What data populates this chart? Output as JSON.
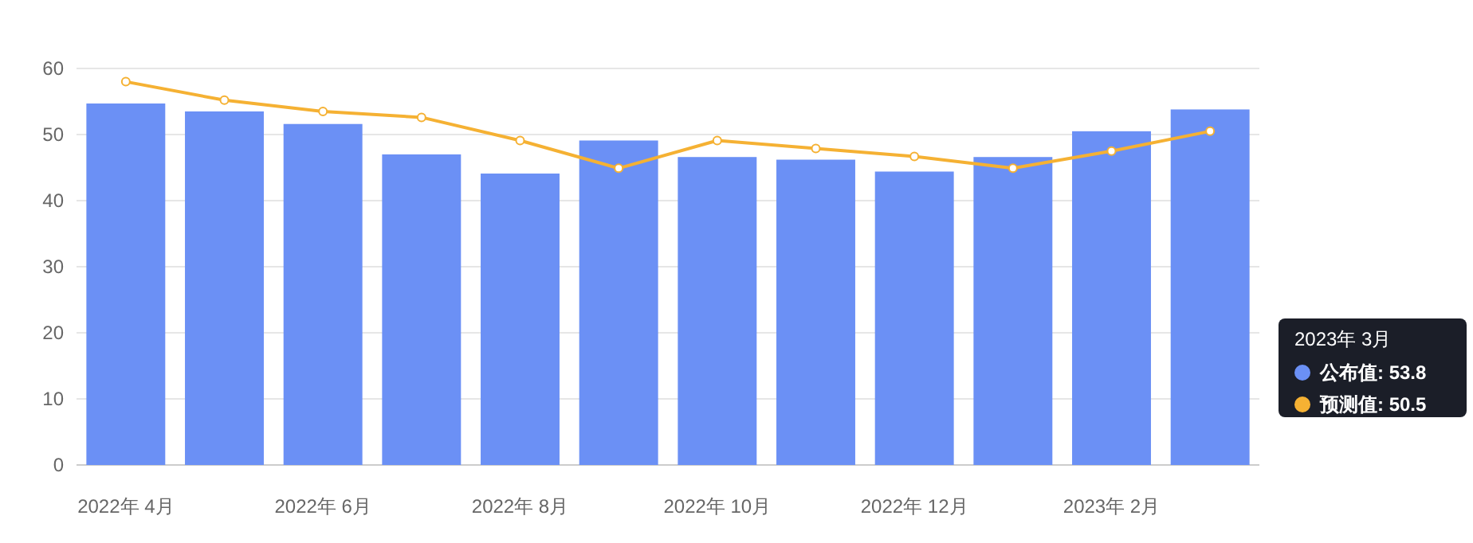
{
  "chart_data": {
    "type": "bar",
    "categories": [
      "2022年 4月",
      null,
      "2022年 6月",
      null,
      "2022年 8月",
      null,
      "2022年 10月",
      null,
      "2022年 12月",
      null,
      "2023年 2月",
      null
    ],
    "series": [
      {
        "name": "公布值",
        "color": "#6b90f5",
        "values": [
          54.7,
          53.5,
          51.6,
          47.0,
          44.1,
          49.1,
          46.6,
          46.2,
          44.4,
          46.6,
          50.5,
          53.8
        ]
      },
      {
        "name": "预测值",
        "type": "line",
        "color": "#f5b133",
        "values": [
          58.0,
          55.2,
          53.5,
          52.6,
          49.1,
          44.9,
          49.1,
          47.9,
          46.7,
          44.9,
          47.5,
          50.5
        ]
      }
    ],
    "ylim": [
      0,
      60
    ],
    "yticks": [
      0,
      10,
      20,
      30,
      40,
      50,
      60
    ],
    "grid": "y",
    "legend": "right",
    "marker": "circle",
    "annotations": [
      "2023年 3月",
      ": 53.8",
      ": 50.5"
    ]
  }
}
